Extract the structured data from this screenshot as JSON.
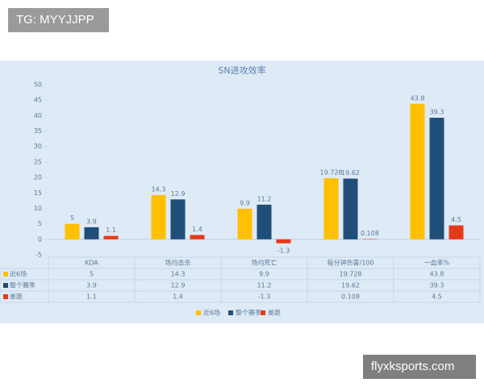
{
  "watermark_top": "TG: MYYJJPP",
  "watermark_bottom": "flyxksports.com",
  "chart_data": {
    "type": "bar",
    "title": "SN进攻效率",
    "categories": [
      "KDA",
      "场均击杀",
      "场均死亡",
      "每分钟伤害/100",
      "一血率%"
    ],
    "series": [
      {
        "name": "近6场",
        "color": "#ffc000",
        "values": [
          5,
          14.3,
          9.9,
          19.728,
          43.8
        ]
      },
      {
        "name": "整个赛季",
        "color": "#1f4e79",
        "values": [
          3.9,
          12.9,
          11.2,
          19.62,
          39.3
        ]
      },
      {
        "name": "差距",
        "color": "#e8381a",
        "values": [
          1.1,
          1.4,
          -1.3,
          0.108,
          4.5
        ]
      }
    ],
    "ylim": [
      -5,
      50
    ],
    "yticks": [
      -5,
      0,
      5,
      10,
      15,
      20,
      25,
      30,
      35,
      40,
      45,
      50
    ]
  }
}
